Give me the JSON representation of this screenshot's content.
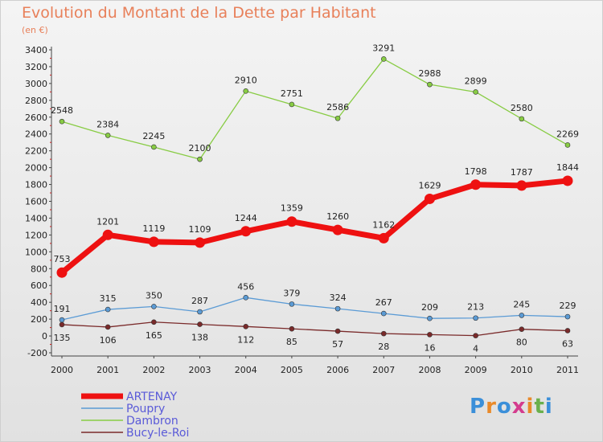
{
  "header": {
    "title": "Evolution du Montant de la Dette par Habitant",
    "subtitle": "(en €)"
  },
  "brand": {
    "logo_text": "Proxiti"
  },
  "chart_data": {
    "type": "line",
    "title": "Evolution du Montant de la Dette par Habitant",
    "subtitle": "(en €)",
    "x": [
      "2000",
      "2001",
      "2002",
      "2003",
      "2004",
      "2005",
      "2006",
      "2007",
      "2008",
      "2009",
      "2010",
      "2011"
    ],
    "ylim": [
      -200,
      3400
    ],
    "yticks": [
      -200,
      0,
      200,
      400,
      600,
      800,
      1000,
      1200,
      1400,
      1600,
      1800,
      2000,
      2200,
      2400,
      2600,
      2800,
      3000,
      3200,
      3400
    ],
    "grid": false,
    "legend_position": "bottom-left",
    "series": [
      {
        "name": "ARTENAY",
        "color": "#ee1111",
        "values": [
          753,
          1201,
          1119,
          1109,
          1244,
          1359,
          1260,
          1162,
          1629,
          1798,
          1787,
          1844
        ]
      },
      {
        "name": "Poupry",
        "color": "#5b9bd5",
        "values": [
          191,
          315,
          350,
          287,
          456,
          379,
          324,
          267,
          209,
          213,
          245,
          229
        ]
      },
      {
        "name": "Dambron",
        "color": "#88cc44",
        "values": [
          2548,
          2384,
          2245,
          2100,
          2910,
          2751,
          2586,
          3291,
          2988,
          2899,
          2580,
          2269
        ]
      },
      {
        "name": "Bucy-le-Roi",
        "color": "#7a2a2a",
        "values": [
          135,
          106,
          165,
          138,
          112,
          85,
          57,
          28,
          16,
          4,
          80,
          63
        ]
      }
    ]
  }
}
